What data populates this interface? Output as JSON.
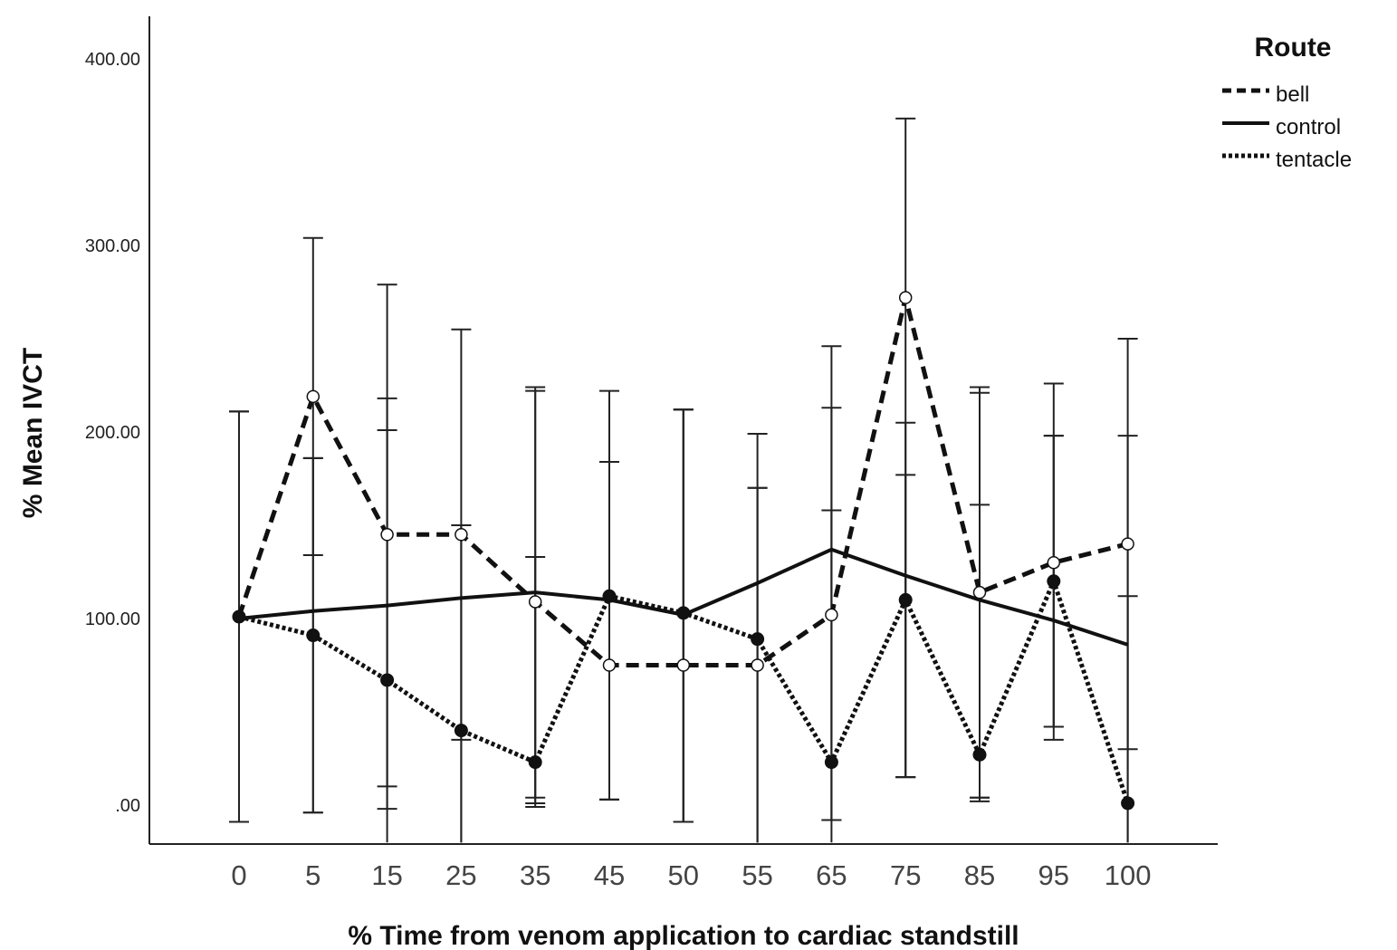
{
  "chart_data": {
    "type": "line",
    "title": "",
    "xlabel": "% Time from venom application to cardiac standstill",
    "ylabel": "% Mean IVCT",
    "categories": [
      "0",
      "5",
      "15",
      "25",
      "35",
      "45",
      "50",
      "55",
      "65",
      "75",
      "85",
      "95",
      "100"
    ],
    "y_ticks": [
      0,
      100,
      200,
      300,
      400
    ],
    "y_tick_labels": [
      ".00",
      "100.00",
      "200.00",
      "300.00",
      "400.00"
    ],
    "ylim": [
      -20,
      420
    ],
    "legend": {
      "title": "Route",
      "position": "top-right"
    },
    "series": [
      {
        "name": "bell",
        "style": "dashed",
        "marker": "open-circle",
        "values": [
          101,
          219,
          145,
          145,
          109,
          75,
          75,
          75,
          102,
          272,
          114,
          130,
          140
        ],
        "error_low": [
          -9,
          134,
          10,
          35,
          -1,
          3,
          -9,
          -20,
          -8,
          15,
          4,
          42,
          30
        ],
        "error_high": [
          211,
          304,
          279,
          255,
          222,
          222,
          212,
          199,
          246,
          368,
          224,
          226,
          250
        ]
      },
      {
        "name": "control",
        "style": "solid",
        "marker": "none",
        "values": [
          100,
          104,
          107,
          111,
          114,
          110,
          102,
          119,
          137,
          123,
          110,
          99,
          86
        ],
        "error_low": [
          -9,
          -4,
          -2,
          -20,
          4,
          3,
          -9,
          -20,
          -8,
          15,
          2,
          35,
          -20
        ],
        "error_high": [
          211,
          186,
          218,
          150,
          224,
          184,
          212,
          170,
          213,
          205,
          221,
          198,
          198
        ]
      },
      {
        "name": "tentacle",
        "style": "dotted",
        "marker": "filled-circle",
        "values": [
          101,
          91,
          67,
          40,
          23,
          112,
          103,
          89,
          23,
          110,
          27,
          120,
          1
        ],
        "error_low": [
          -9,
          -4,
          -20,
          -20,
          1,
          3,
          -9,
          -20,
          -20,
          15,
          4,
          42,
          -20
        ],
        "error_high": [
          211,
          186,
          201,
          150,
          133,
          184,
          212,
          170,
          158,
          177,
          161,
          198,
          112
        ]
      }
    ]
  }
}
